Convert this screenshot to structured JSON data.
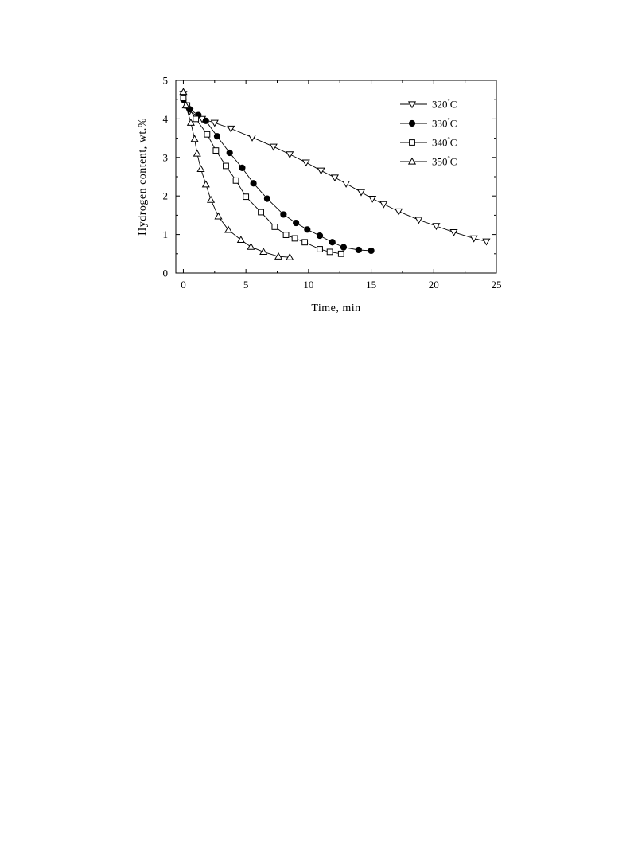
{
  "chart_data": {
    "type": "line",
    "xlabel": "Time, min",
    "ylabel": "Hydrogen content, wt.%",
    "xlim": [
      -0.6,
      25
    ],
    "ylim": [
      0,
      5
    ],
    "xticks": [
      0,
      5,
      10,
      15,
      20,
      25
    ],
    "xtick_labels": [
      "0",
      "5",
      "10",
      "15",
      "20",
      "25"
    ],
    "yticks": [
      0,
      1,
      2,
      3,
      4,
      5
    ],
    "ytick_labels": [
      "0",
      "1",
      "2",
      "3",
      "4",
      "5"
    ],
    "grid": false,
    "legend_position": "top-right",
    "series": [
      {
        "name": "320",
        "unit": "°C",
        "marker": "triangle-down-open",
        "x": [
          0,
          0.5,
          1.5,
          2.5,
          3.8,
          5.5,
          7.2,
          8.5,
          9.8,
          11.0,
          12.1,
          13.0,
          14.2,
          15.1,
          16.0,
          17.2,
          18.8,
          20.2,
          21.6,
          23.2,
          24.2
        ],
        "y": [
          4.65,
          4.2,
          4.0,
          3.9,
          3.75,
          3.52,
          3.28,
          3.08,
          2.87,
          2.66,
          2.48,
          2.32,
          2.1,
          1.93,
          1.79,
          1.6,
          1.38,
          1.22,
          1.06,
          0.9,
          0.82
        ]
      },
      {
        "name": "330",
        "unit": "°C",
        "marker": "circle-filled",
        "x": [
          0,
          0.5,
          1.2,
          1.8,
          2.7,
          3.7,
          4.7,
          5.6,
          6.7,
          8.0,
          9.0,
          9.9,
          10.9,
          11.9,
          12.8,
          14.0,
          15.0
        ],
        "y": [
          4.5,
          4.25,
          4.1,
          3.95,
          3.55,
          3.12,
          2.73,
          2.33,
          1.93,
          1.52,
          1.3,
          1.13,
          0.97,
          0.8,
          0.67,
          0.6,
          0.58
        ]
      },
      {
        "name": "340",
        "unit": "°C",
        "marker": "square-open",
        "x": [
          0,
          0.3,
          1.0,
          1.9,
          2.6,
          3.4,
          4.2,
          5.0,
          6.2,
          7.3,
          8.2,
          8.9,
          9.7,
          10.9,
          11.7,
          12.6
        ],
        "y": [
          4.55,
          4.35,
          4.0,
          3.6,
          3.18,
          2.78,
          2.4,
          1.98,
          1.58,
          1.2,
          0.99,
          0.9,
          0.8,
          0.62,
          0.55,
          0.5
        ]
      },
      {
        "name": "350",
        "unit": "°C",
        "marker": "triangle-up-open",
        "x": [
          0,
          0.2,
          0.6,
          0.9,
          1.1,
          1.4,
          1.8,
          2.2,
          2.8,
          3.6,
          4.6,
          5.4,
          6.4,
          7.6,
          8.5
        ],
        "y": [
          4.7,
          4.35,
          3.9,
          3.48,
          3.1,
          2.7,
          2.3,
          1.9,
          1.47,
          1.12,
          0.86,
          0.68,
          0.55,
          0.43,
          0.41
        ]
      }
    ]
  }
}
